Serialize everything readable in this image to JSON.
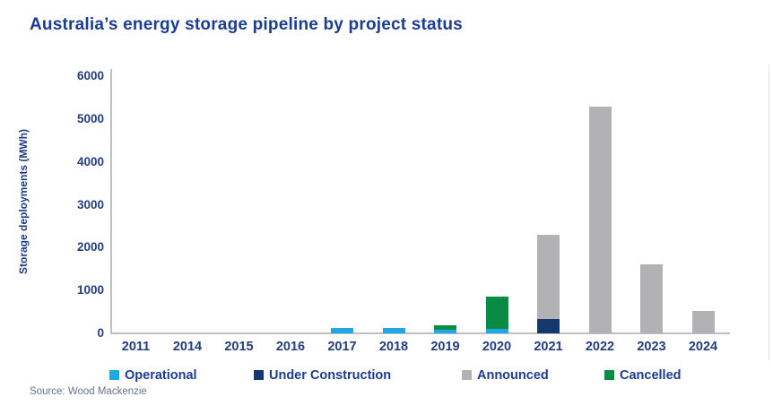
{
  "title": "Australia’s energy storage pipeline by project status",
  "source_note": "Source: Wood Mackenzie",
  "colors": {
    "title_text": "#1b3c91",
    "axis_label_text": "#233e7d",
    "axis_line": "#bfbfbf",
    "source_text": "#64748f",
    "background": "#ffffff",
    "operational": "#22a7e5",
    "under_construction": "#14386f",
    "announced": "#b2b2b4",
    "cancelled": "#088b43"
  },
  "legend": {
    "items": [
      {
        "label": "Operational",
        "color": "#22a7e5"
      },
      {
        "label": "Under Construction",
        "color": "#14386f"
      },
      {
        "label": "Announced",
        "color": "#b2b2b4"
      },
      {
        "label": "Cancelled",
        "color": "#088b43"
      }
    ]
  },
  "chart_data": {
    "type": "bar",
    "stacked": true,
    "title": "Australia’s energy storage pipeline by project status",
    "xlabel": "",
    "ylabel": "Storage deployments (MWh)",
    "ylim": [
      0,
      6000
    ],
    "yticks": [
      0,
      1000,
      2000,
      3000,
      4000,
      5000,
      6000
    ],
    "grid": false,
    "legend_position": "bottom",
    "categories": [
      "2011",
      "2014",
      "2015",
      "2016",
      "2017",
      "2018",
      "2019",
      "2020",
      "2021",
      "2022",
      "2023",
      "2024"
    ],
    "series": [
      {
        "name": "Operational",
        "color": "#22a7e5",
        "values": [
          0,
          0,
          0,
          0,
          120,
          120,
          70,
          100,
          0,
          0,
          0,
          0
        ]
      },
      {
        "name": "Under Construction",
        "color": "#14386f",
        "values": [
          0,
          0,
          0,
          0,
          0,
          0,
          0,
          0,
          330,
          0,
          0,
          0
        ]
      },
      {
        "name": "Announced",
        "color": "#b2b2b4",
        "values": [
          0,
          0,
          0,
          0,
          0,
          0,
          0,
          0,
          1960,
          5270,
          1590,
          520
        ]
      },
      {
        "name": "Cancelled",
        "color": "#088b43",
        "values": [
          0,
          0,
          0,
          0,
          0,
          0,
          100,
          740,
          0,
          0,
          0,
          0
        ]
      }
    ],
    "stack_order_bottom_to_top": [
      "Operational",
      "Under Construction",
      "Announced",
      "Cancelled"
    ]
  }
}
